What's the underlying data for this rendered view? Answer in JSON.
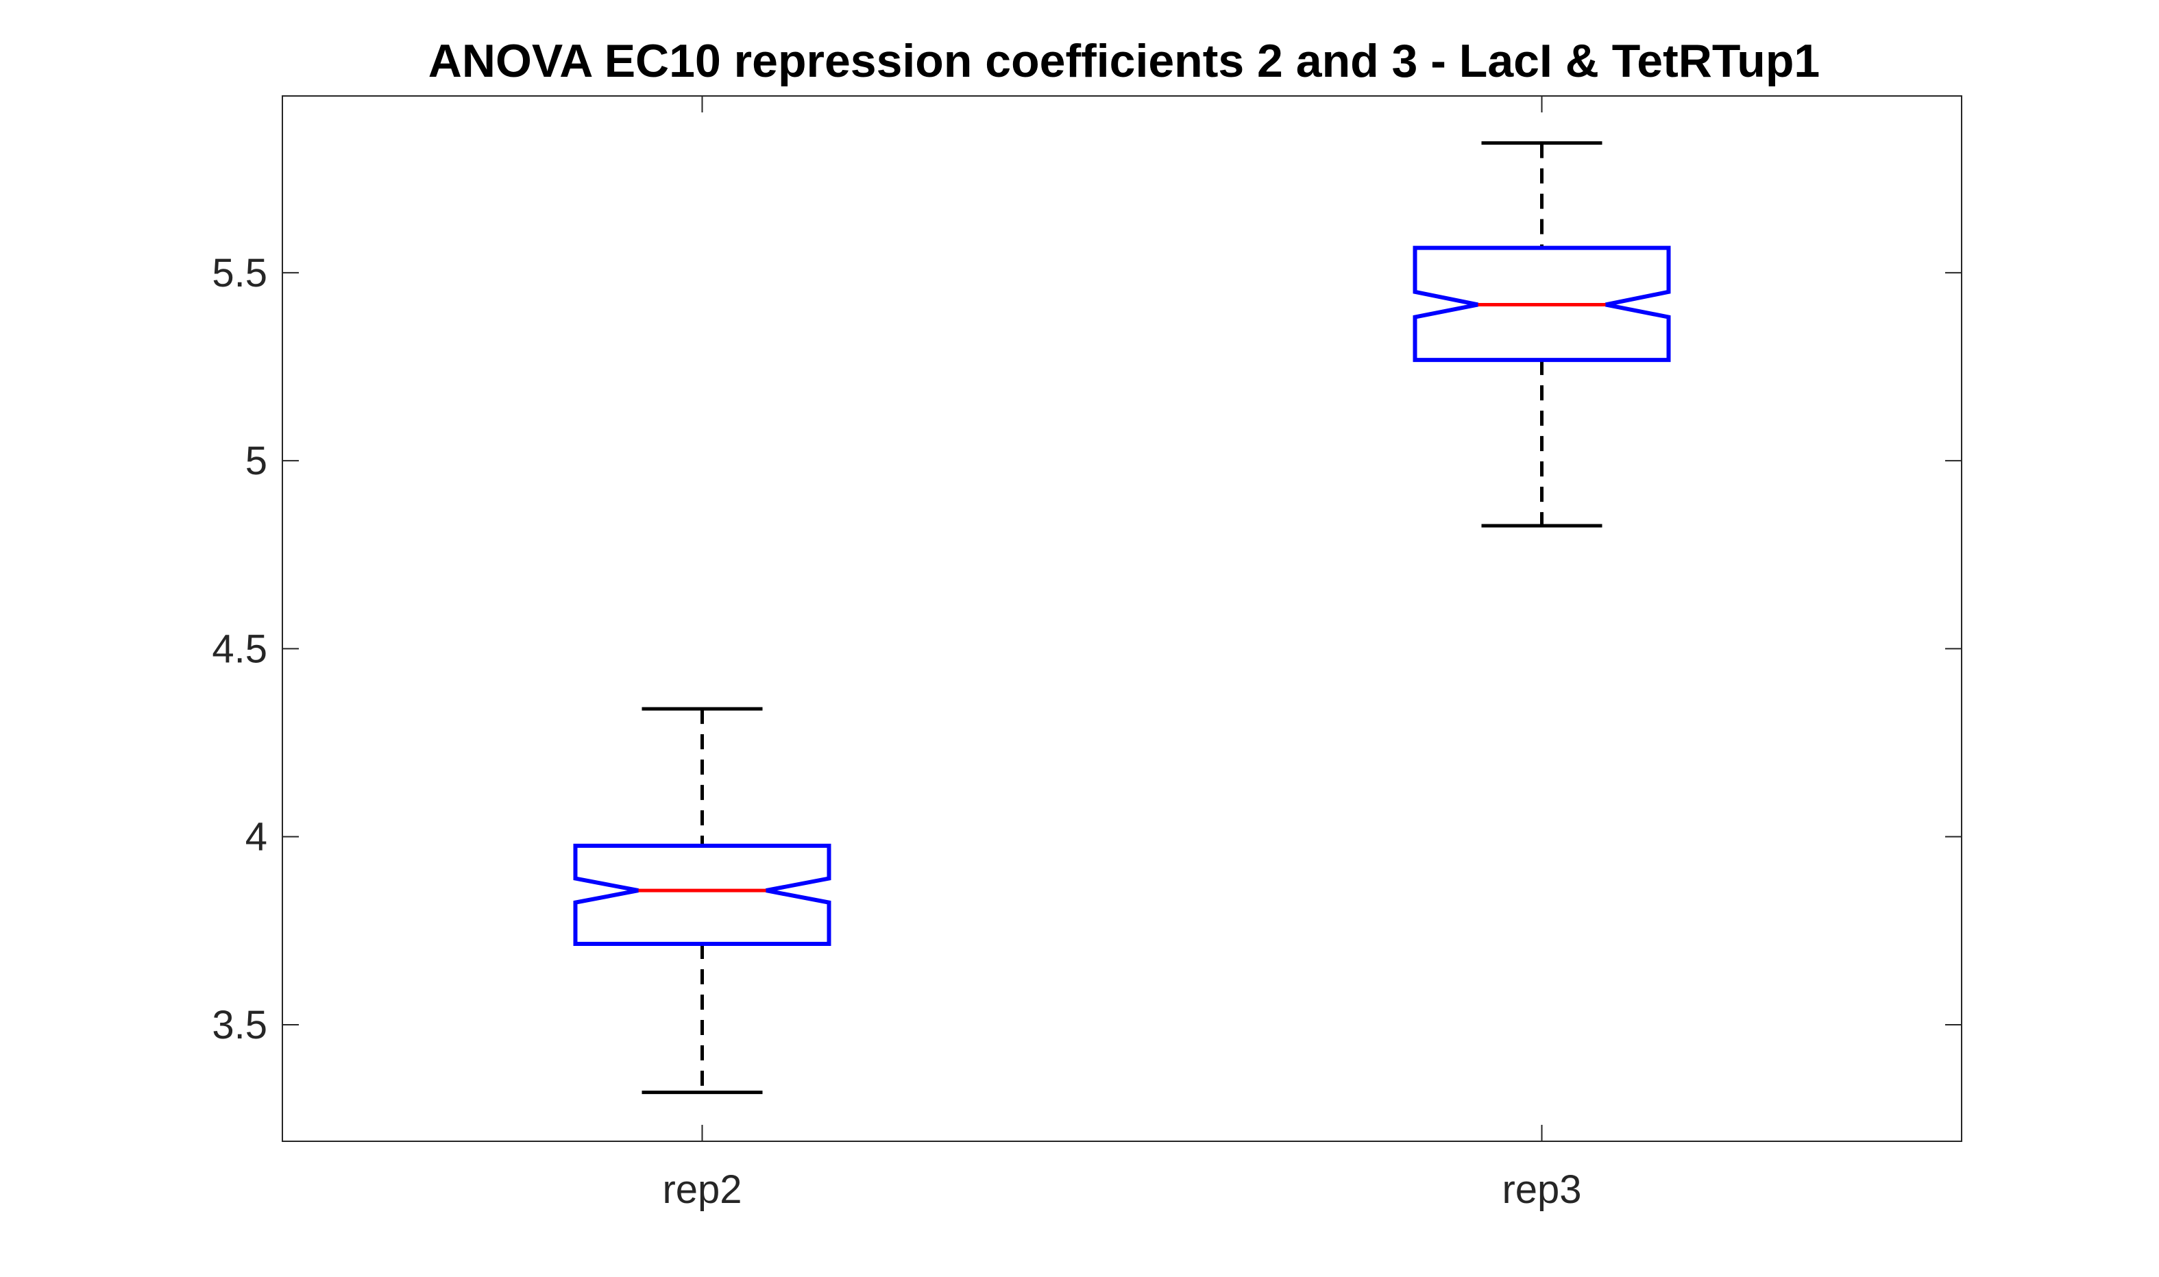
{
  "chart_data": {
    "type": "boxplot",
    "title": "ANOVA EC10 repression coefficients 2 and 3 - LacI & TetRTup1",
    "xlabel": "",
    "ylabel": "",
    "ylim": [
      3.19,
      5.97
    ],
    "y_ticks": [
      "3.5",
      "4",
      "4.5",
      "5",
      "5.5"
    ],
    "y_tick_values": [
      3.5,
      4,
      4.5,
      5,
      5.5
    ],
    "grid": false,
    "notched": true,
    "categories": [
      "rep2",
      "rep3"
    ],
    "boxes": [
      {
        "category": "rep2",
        "whisker_low": 3.32,
        "q1": 3.715,
        "notch_low": 3.825,
        "median": 3.857,
        "notch_high": 3.889,
        "q3": 3.976,
        "whisker_high": 4.34
      },
      {
        "category": "rep3",
        "whisker_low": 4.827,
        "q1": 5.268,
        "notch_low": 5.382,
        "median": 5.415,
        "notch_high": 5.449,
        "q3": 5.566,
        "whisker_high": 5.845
      }
    ],
    "colors": {
      "box": "#0000ff",
      "median": "#ff0000",
      "whisker": "#000000",
      "axes": "#262626"
    }
  }
}
